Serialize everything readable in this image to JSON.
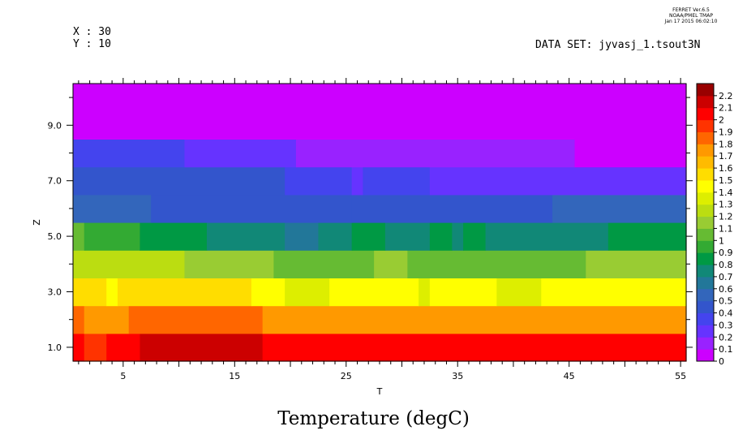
{
  "header": {
    "ferret_line1": "FERRET  Ver.6.5",
    "ferret_line2": "NOAA/PMEL TMAP",
    "ferret_line3": "Jan 17 2015 06:02:10",
    "x_info": "X : 30",
    "y_info": "Y : 10",
    "dataset": "DATA SET: jyvasj_1.tsout3N"
  },
  "chart_data": {
    "type": "heatmap",
    "title": "Temperature (degC)",
    "xlabel": "T",
    "ylabel": "Z",
    "xlim": [
      0.5,
      55.5
    ],
    "ylim": [
      0.5,
      10.5
    ],
    "x_ticks": [
      5,
      15,
      25,
      35,
      45,
      55
    ],
    "y_ticks": [
      1.0,
      3.0,
      5.0,
      7.0,
      9.0
    ],
    "y_tick_labels": [
      "1.0",
      "3.0",
      "5.0",
      "7.0",
      "9.0"
    ],
    "colorbar": {
      "levels": [
        0,
        0.1,
        0.2,
        0.3,
        0.4,
        0.5,
        0.6,
        0.7,
        0.8,
        0.9,
        1,
        1.1,
        1.2,
        1.3,
        1.4,
        1.5,
        1.6,
        1.7,
        1.8,
        1.9,
        2,
        2.1,
        2.2
      ],
      "labels": [
        "0",
        "0.1",
        "0.2",
        "0.3",
        "0.4",
        "0.5",
        "0.6",
        "0.7",
        "0.8",
        "0.9",
        "1",
        "1.1",
        "1.2",
        "1.3",
        "1.4",
        "1.5",
        "1.6",
        "1.7",
        "1.8",
        "1.9",
        "2",
        "2.1",
        "2.2"
      ],
      "colors": [
        "#cc00ff",
        "#9922ff",
        "#6633ff",
        "#4444ee",
        "#3355cc",
        "#3366bb",
        "#227799",
        "#118877",
        "#009944",
        "#33aa33",
        "#66bb33",
        "#99cc33",
        "#bbdd11",
        "#ddee00",
        "#ffff00",
        "#ffdd00",
        "#ffbb00",
        "#ff9900",
        "#ff6600",
        "#ff3300",
        "#ff0000",
        "#cc0000",
        "#990000"
      ]
    },
    "rows": [
      {
        "z": 1,
        "segments": [
          [
            0.5,
            1.5,
            2.05
          ],
          [
            1.5,
            3.5,
            1.95
          ],
          [
            3.5,
            6.5,
            2.05
          ],
          [
            6.5,
            17.5,
            2.15
          ],
          [
            17.5,
            55.5,
            2.05
          ]
        ]
      },
      {
        "z": 2,
        "segments": [
          [
            0.5,
            1.5,
            1.85
          ],
          [
            1.5,
            5.5,
            1.75
          ],
          [
            5.5,
            17.5,
            1.85
          ],
          [
            17.5,
            55.5,
            1.75
          ]
        ]
      },
      {
        "z": 3,
        "segments": [
          [
            0.5,
            3.5,
            1.55
          ],
          [
            3.5,
            4.5,
            1.45
          ],
          [
            4.5,
            16.5,
            1.55
          ],
          [
            16.5,
            19.5,
            1.45
          ],
          [
            19.5,
            23.5,
            1.35
          ],
          [
            23.5,
            31.5,
            1.45
          ],
          [
            31.5,
            32.5,
            1.35
          ],
          [
            32.5,
            38.5,
            1.45
          ],
          [
            38.5,
            42.5,
            1.35
          ],
          [
            42.5,
            55.5,
            1.45
          ]
        ]
      },
      {
        "z": 4,
        "segments": [
          [
            0.5,
            10.5,
            1.25
          ],
          [
            10.5,
            18.5,
            1.15
          ],
          [
            18.5,
            27.5,
            1.05
          ],
          [
            27.5,
            30.5,
            1.15
          ],
          [
            30.5,
            46.5,
            1.05
          ],
          [
            46.5,
            55.5,
            1.15
          ]
        ]
      },
      {
        "z": 5,
        "segments": [
          [
            0.5,
            1.5,
            1.05
          ],
          [
            1.5,
            6.5,
            0.95
          ],
          [
            6.5,
            12.5,
            0.85
          ],
          [
            12.5,
            19.5,
            0.75
          ],
          [
            19.5,
            22.5,
            0.65
          ],
          [
            22.5,
            25.5,
            0.75
          ],
          [
            25.5,
            28.5,
            0.85
          ],
          [
            28.5,
            32.5,
            0.75
          ],
          [
            32.5,
            34.5,
            0.85
          ],
          [
            34.5,
            35.5,
            0.75
          ],
          [
            35.5,
            37.5,
            0.85
          ],
          [
            37.5,
            48.5,
            0.75
          ],
          [
            48.5,
            55.5,
            0.85
          ]
        ]
      },
      {
        "z": 6,
        "segments": [
          [
            0.5,
            7.5,
            0.55
          ],
          [
            7.5,
            25.5,
            0.45
          ],
          [
            25.5,
            43.5,
            0.45
          ],
          [
            43.5,
            55.5,
            0.55
          ]
        ]
      },
      {
        "z": 7,
        "segments": [
          [
            0.5,
            19.5,
            0.45
          ],
          [
            19.5,
            25.5,
            0.35
          ],
          [
            25.5,
            26.5,
            0.25
          ],
          [
            26.5,
            32.5,
            0.35
          ],
          [
            32.5,
            55.5,
            0.25
          ]
        ]
      },
      {
        "z": 8,
        "segments": [
          [
            0.5,
            10.5,
            0.35
          ],
          [
            10.5,
            20.5,
            0.25
          ],
          [
            20.5,
            45.5,
            0.15
          ],
          [
            45.5,
            55.5,
            0.05
          ]
        ]
      },
      {
        "z": 9,
        "segments": [
          [
            0.5,
            55.5,
            0.05
          ]
        ]
      },
      {
        "z": 10,
        "segments": [
          [
            0.5,
            55.5,
            0.05
          ]
        ]
      }
    ]
  }
}
